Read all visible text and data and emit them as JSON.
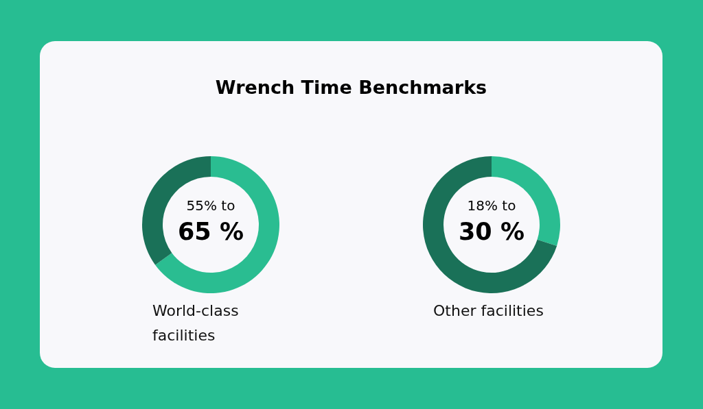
{
  "chart_data": [
    {
      "type": "other",
      "title": "Wrench Time Benchmarks"
    },
    {
      "type": "donut",
      "categories": [
        null,
        null
      ],
      "values": [
        65,
        35
      ],
      "colors": [
        "#2abd91",
        "#1a7158"
      ],
      "annotations": [
        "55% to",
        "65 %"
      ],
      "xlabel": "World-class facilities"
    },
    {
      "type": "donut",
      "categories": [
        null,
        null
      ],
      "values": [
        30,
        70
      ],
      "colors": [
        "#2abd91",
        "#1a7158"
      ],
      "annotations": [
        "18% to",
        "30 %"
      ],
      "xlabel": "Other facilities"
    }
  ]
}
